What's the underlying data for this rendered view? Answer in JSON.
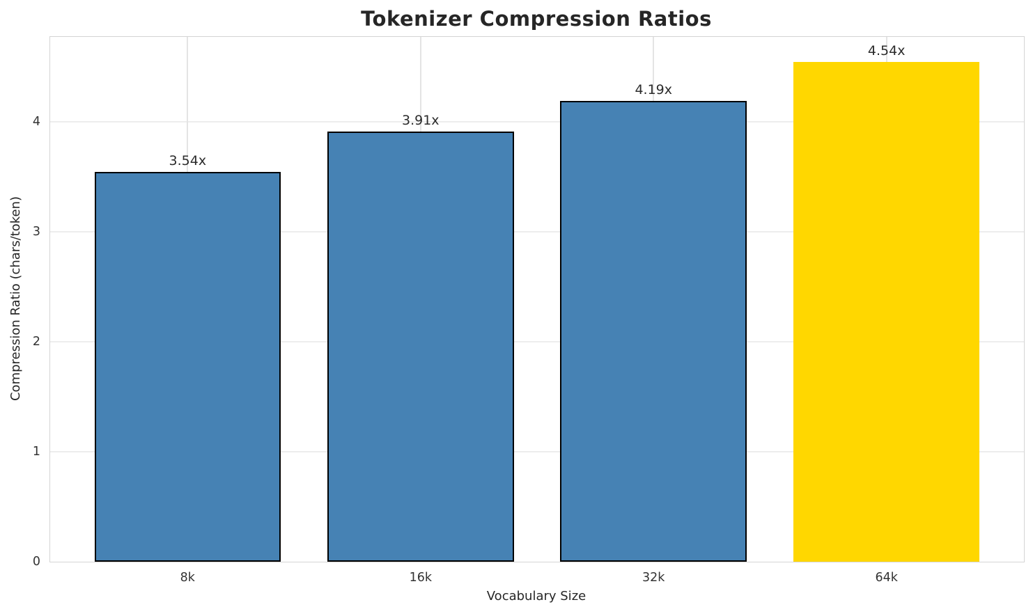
{
  "chart_data": {
    "type": "bar",
    "title": "Tokenizer Compression Ratios",
    "xlabel": "Vocabulary Size",
    "ylabel": "Compression Ratio (chars/token)",
    "categories": [
      "8k",
      "16k",
      "32k",
      "64k"
    ],
    "values": [
      3.54,
      3.91,
      4.19,
      4.54
    ],
    "bar_labels": [
      "3.54x",
      "3.91x",
      "4.19x",
      "4.54x"
    ],
    "yticks": [
      0,
      1,
      2,
      3,
      4
    ],
    "ylim": [
      0,
      4.77
    ],
    "bar_width_fraction": 0.8,
    "grid": true,
    "legend_position": "none",
    "bar_colors": [
      "#4682B4",
      "#4682B4",
      "#4682B4",
      "#FFD700"
    ],
    "bar_edge_colors": [
      "#000000",
      "#000000",
      "#000000",
      "none"
    ],
    "highlight_category": "64k",
    "highlight_color": "#FFD700",
    "default_bar_color": "#4682B4"
  }
}
